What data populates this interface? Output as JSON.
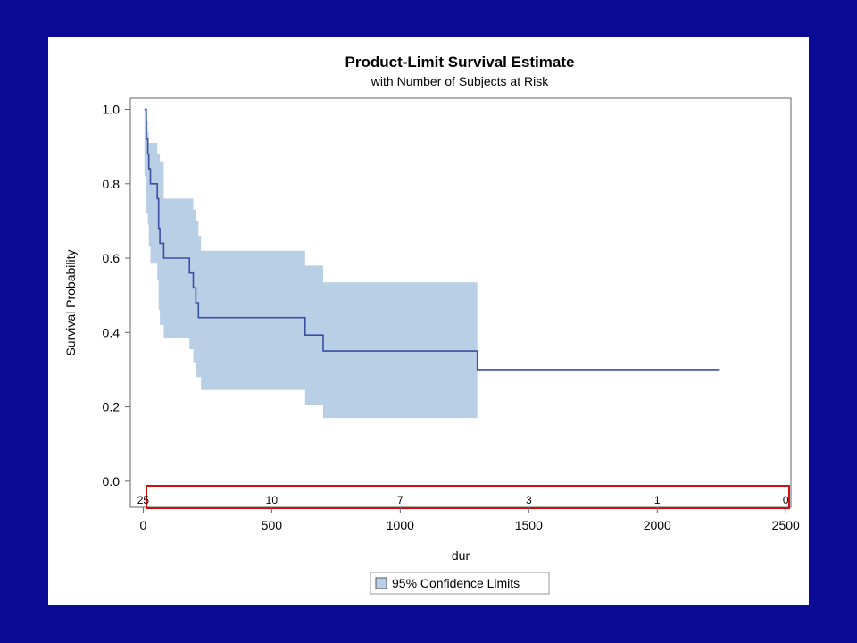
{
  "colors": {
    "background": "#0a0a96",
    "panel": "#ffffff",
    "curve": "#3b4fa0",
    "band": "#b9cfe6",
    "risk_box": "#d01010",
    "axis": "#666666"
  },
  "chart_data": {
    "type": "line",
    "title": "Product-Limit Survival Estimate",
    "subtitle": "with Number of Subjects at Risk",
    "xlabel": "dur",
    "ylabel": "Survival Probability",
    "xlim": [
      -50,
      2520
    ],
    "ylim": [
      -0.07,
      1.03
    ],
    "xticks": [
      0,
      500,
      1000,
      1500,
      2000,
      2500
    ],
    "yticks": [
      0.0,
      0.2,
      0.4,
      0.6,
      0.8,
      1.0
    ],
    "ytick_labels": [
      "0.0",
      "0.2",
      "0.4",
      "0.6",
      "0.8",
      "1.0"
    ],
    "grid": false,
    "legend_position": "bottom-center",
    "series": [
      {
        "name": "",
        "kind": "step",
        "x": [
          5,
          12,
          18,
          22,
          28,
          55,
          60,
          65,
          80,
          180,
          195,
          205,
          215,
          225,
          630,
          700,
          1300,
          2240
        ],
        "y": [
          1.0,
          0.92,
          0.88,
          0.84,
          0.8,
          0.76,
          0.68,
          0.64,
          0.6,
          0.56,
          0.52,
          0.48,
          0.44,
          0.44,
          0.393,
          0.35,
          0.3,
          0.3
        ]
      }
    ],
    "confidence_band": {
      "label": "95% Confidence Limits",
      "x": [
        5,
        12,
        18,
        22,
        28,
        55,
        60,
        65,
        80,
        180,
        195,
        205,
        215,
        225,
        630,
        700,
        1300
      ],
      "upper": [
        1.0,
        0.97,
        0.94,
        0.91,
        0.91,
        0.88,
        0.88,
        0.86,
        0.76,
        0.76,
        0.73,
        0.7,
        0.66,
        0.62,
        0.58,
        0.535,
        0.535
      ],
      "lower": [
        0.82,
        0.72,
        0.69,
        0.63,
        0.585,
        0.54,
        0.46,
        0.42,
        0.385,
        0.355,
        0.32,
        0.28,
        0.28,
        0.245,
        0.205,
        0.17,
        0.17
      ]
    },
    "at_risk": [
      {
        "x": 0,
        "label": "25"
      },
      {
        "x": 500,
        "label": "10"
      },
      {
        "x": 1000,
        "label": "7"
      },
      {
        "x": 1500,
        "label": "3"
      },
      {
        "x": 2000,
        "label": "1"
      },
      {
        "x": 2500,
        "label": "0"
      }
    ]
  }
}
